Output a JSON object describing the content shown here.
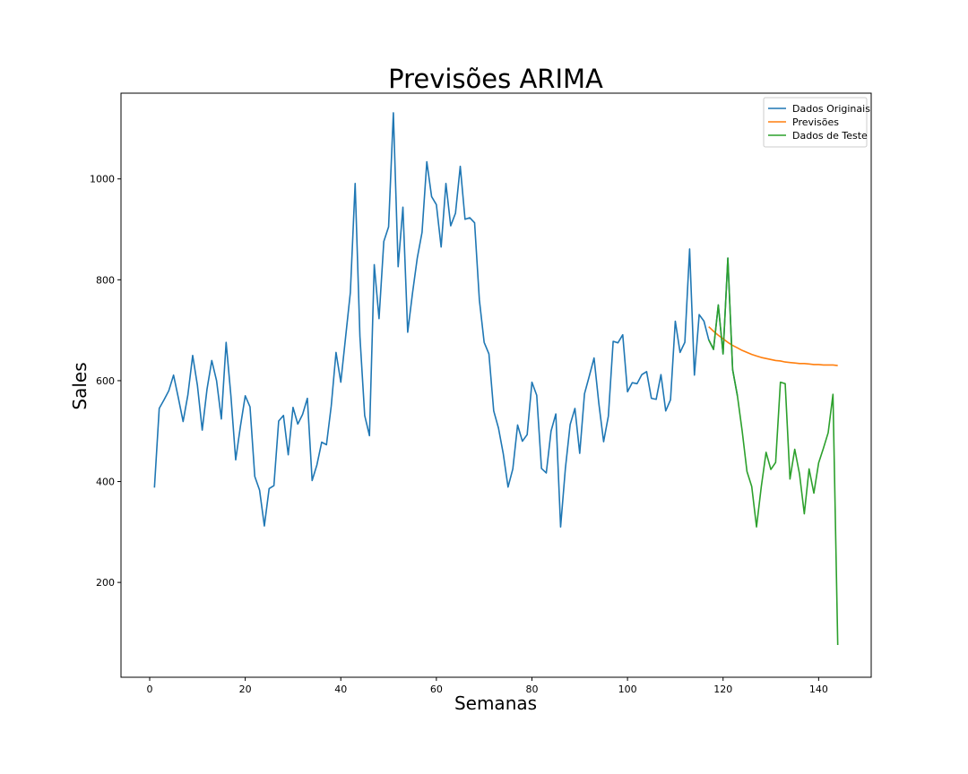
{
  "chart_data": {
    "type": "line",
    "title": "Previsões ARIMA",
    "xlabel": "Semanas",
    "ylabel": "Sales",
    "xlim": [
      -6,
      151
    ],
    "ylim": [
      12,
      1170
    ],
    "x_ticks": [
      0,
      20,
      40,
      60,
      80,
      100,
      120,
      140
    ],
    "y_ticks": [
      200,
      400,
      600,
      800,
      1000
    ],
    "grid": false,
    "legend_position": "top-right",
    "series": [
      {
        "name": "Dados Originais",
        "color": "#1f77b4",
        "x_start": 1,
        "values": [
          388,
          545,
          562,
          580,
          611,
          566,
          519,
          572,
          650,
          590,
          502,
          583,
          640,
          600,
          524,
          676,
          570,
          443,
          510,
          570,
          548,
          410,
          383,
          312,
          386,
          392,
          520,
          531,
          453,
          547,
          514,
          533,
          565,
          402,
          433,
          478,
          473,
          550,
          656,
          597,
          686,
          775,
          991,
          688,
          531,
          491,
          830,
          723,
          876,
          905,
          1131,
          826,
          944,
          696,
          773,
          843,
          894,
          1034,
          965,
          949,
          865,
          991,
          907,
          932,
          1025,
          920,
          923,
          913,
          760,
          676,
          653,
          540,
          506,
          455,
          389,
          425,
          512,
          480,
          493,
          597,
          571,
          426,
          417,
          500,
          534,
          310,
          426,
          513,
          545,
          456,
          574,
          609,
          645,
          555,
          479,
          530,
          678,
          675,
          691,
          578,
          596,
          594,
          612,
          618,
          565,
          563,
          612,
          540,
          562,
          718,
          656,
          676,
          861,
          611,
          731,
          718,
          681,
          662,
          750,
          653,
          843,
          622,
          570
        ]
      },
      {
        "name": "Previsões",
        "color": "#ff7f0e",
        "x_start": 117,
        "values": [
          707,
          698,
          690,
          683,
          676,
          670,
          665,
          660,
          656,
          652,
          649,
          646,
          644,
          642,
          640,
          639,
          637,
          636,
          635,
          634,
          634,
          633,
          632,
          632,
          631,
          631,
          631,
          630
        ]
      },
      {
        "name": "Dados de Teste",
        "color": "#2ca02c",
        "x_start": 117,
        "values": [
          681,
          662,
          750,
          653,
          843,
          622,
          570,
          500,
          420,
          390,
          310,
          390,
          458,
          424,
          438,
          597,
          594,
          405,
          464,
          415,
          336,
          425,
          377,
          437,
          466,
          497,
          573,
          76
        ]
      }
    ]
  }
}
